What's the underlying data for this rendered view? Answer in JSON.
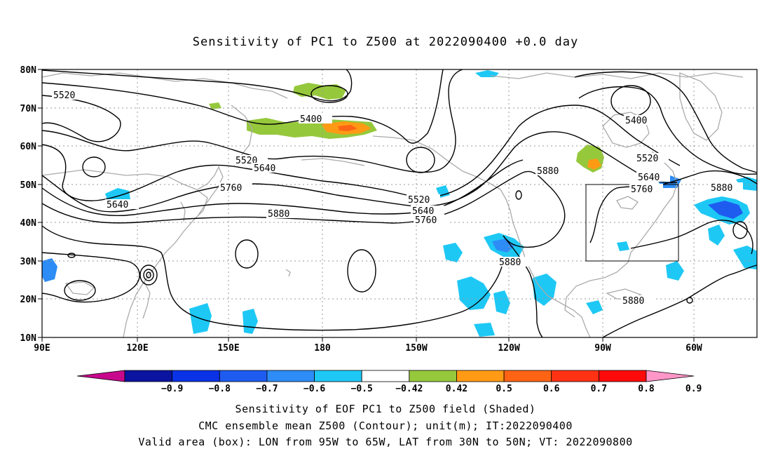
{
  "title": "Sensitivity of PC1 to Z500 at 2022090400 +0.0 day",
  "map": {
    "lon_labels": [
      "90E",
      "120E",
      "150E",
      "180",
      "150W",
      "120W",
      "90W",
      "60W"
    ],
    "lat_labels": [
      "80N",
      "70N",
      "60N",
      "50N",
      "40N",
      "30N",
      "20N",
      "10N"
    ],
    "valid_box": {
      "lon_from": "95W",
      "lon_to": "65W",
      "lat_from": "30N",
      "lat_to": "50N"
    },
    "contour_labels": [
      "5520",
      "5400",
      "5520",
      "5640",
      "5760",
      "5640",
      "5880",
      "5520",
      "5640",
      "5760",
      "5880",
      "5400",
      "5520",
      "5640",
      "5760",
      "5880",
      "5880",
      "5880"
    ],
    "colors": {
      "coast": "#aaaaaa",
      "contour": "#000000",
      "box": "#000000"
    }
  },
  "colorbar": {
    "labels": [
      "-0.9",
      "-0.8",
      "-0.7",
      "-0.6",
      "-0.5",
      "-0.42",
      "0.42",
      "0.5",
      "0.6",
      "0.7",
      "0.8",
      "0.9"
    ],
    "colors": [
      "#c8088c",
      "#0a14a0",
      "#0a32e6",
      "#1e5cf0",
      "#2d8cf5",
      "#1ec8f5",
      "#ffffff",
      "#96c83c",
      "#ff9a14",
      "#ff6414",
      "#ff3214",
      "#ff0a0a",
      "#ff96c8"
    ]
  },
  "captions": {
    "line1": "Sensitivity of EOF PC1 to Z500 field (Shaded)",
    "line2": "CMC ensemble mean Z500 (Contour); unit(m); IT:2022090400",
    "line3": "Valid area (box): LON from 95W to 65W, LAT from 30N to 50N; VT: 2022090800"
  }
}
